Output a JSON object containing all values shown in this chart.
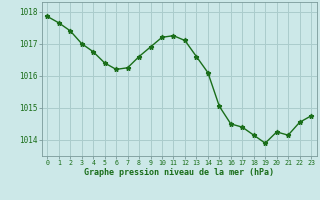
{
  "x": [
    0,
    1,
    2,
    3,
    4,
    5,
    6,
    7,
    8,
    9,
    10,
    11,
    12,
    13,
    14,
    15,
    16,
    17,
    18,
    19,
    20,
    21,
    22,
    23
  ],
  "y": [
    1017.85,
    1017.65,
    1017.4,
    1017.0,
    1016.75,
    1016.4,
    1016.2,
    1016.25,
    1016.6,
    1016.9,
    1017.2,
    1017.25,
    1017.1,
    1016.6,
    1016.1,
    1015.05,
    1014.5,
    1014.4,
    1014.15,
    1013.9,
    1014.25,
    1014.15,
    1014.55,
    1014.75
  ],
  "line_color": "#1a6e1a",
  "marker": "*",
  "marker_size": 3.5,
  "bg_color": "#cce8e8",
  "grid_color": "#aacccc",
  "axis_line_color": "#7a9a9a",
  "xlabel": "Graphe pression niveau de la mer (hPa)",
  "xlabel_color": "#1a6e1a",
  "tick_color": "#1a6e1a",
  "ylim": [
    1013.5,
    1018.3
  ],
  "yticks": [
    1014,
    1015,
    1016,
    1017,
    1018
  ],
  "xlim": [
    -0.5,
    23.5
  ],
  "xticks": [
    0,
    1,
    2,
    3,
    4,
    5,
    6,
    7,
    8,
    9,
    10,
    11,
    12,
    13,
    14,
    15,
    16,
    17,
    18,
    19,
    20,
    21,
    22,
    23
  ]
}
